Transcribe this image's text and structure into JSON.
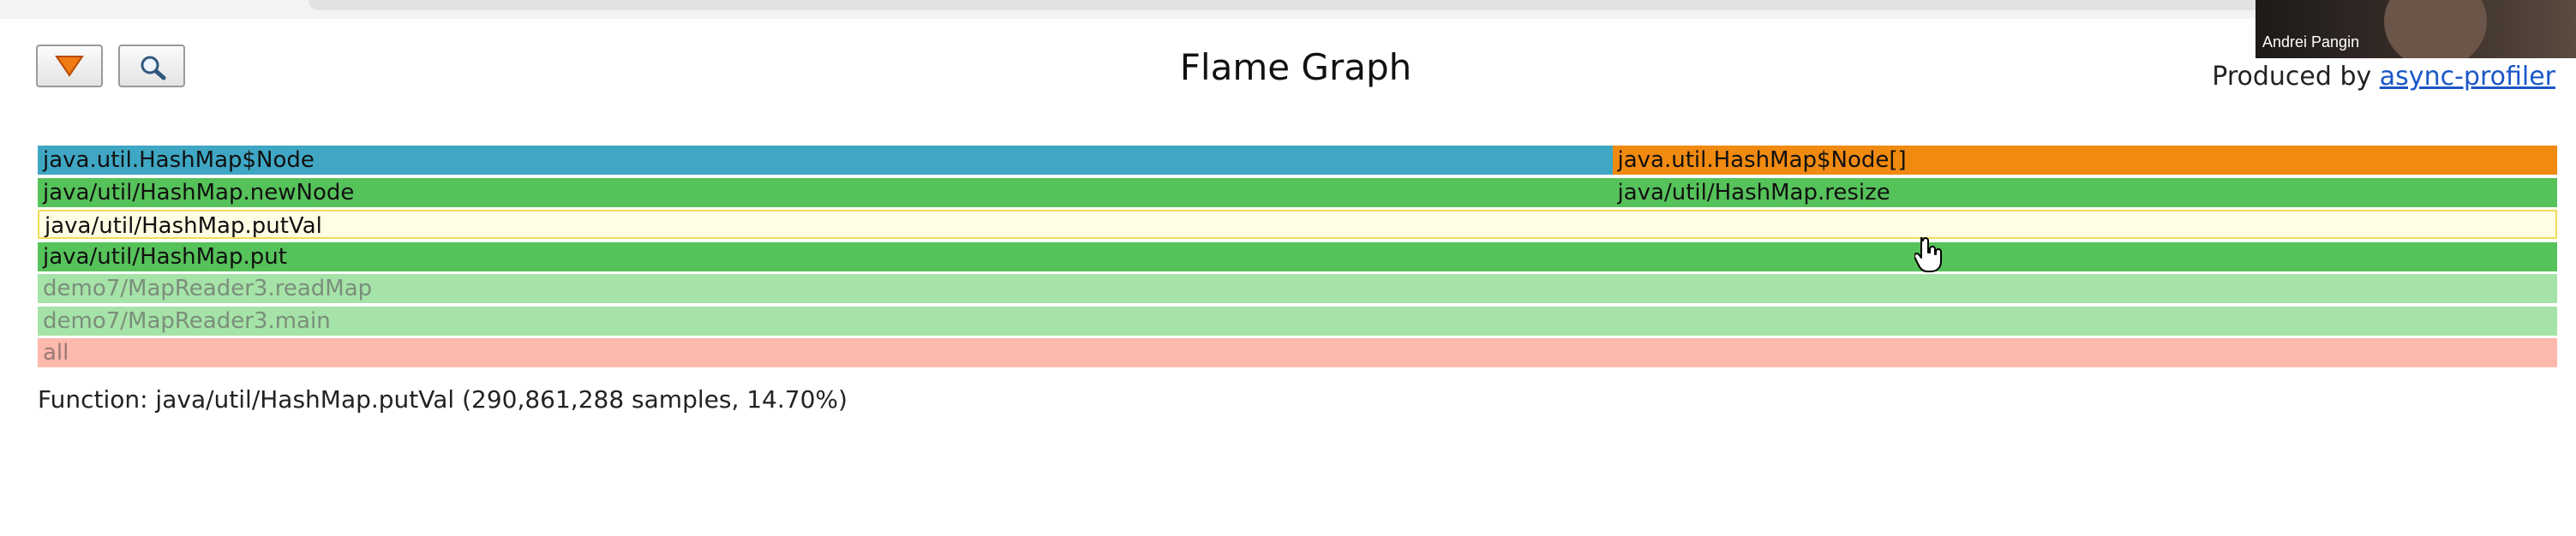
{
  "page": {
    "title": "Flame Graph",
    "credit_prefix": "Produced by ",
    "credit_link": "async-profiler",
    "status_text": "Function: java/util/HashMap.putVal (290,861,288 samples, 14.70%)"
  },
  "toolbar": {
    "reverse_icon": "triangle-down-icon",
    "search_icon": "magnifier-icon"
  },
  "flame": [
    {
      "label": "java.util.HashMap$Node",
      "row": 0,
      "start": 0.0,
      "width": 0.625,
      "color": "#3fa7c4",
      "text_color": "#111111"
    },
    {
      "label": "java.util.HashMap$Node[]",
      "row": 0,
      "start": 0.625,
      "width": 0.375,
      "color": "#f08a10",
      "text_color": "#111111"
    },
    {
      "label": "java/util/HashMap.newNode",
      "row": 1,
      "start": 0.0,
      "width": 0.625,
      "color": "#56c25a",
      "text_color": "#111111"
    },
    {
      "label": "java/util/HashMap.resize",
      "row": 1,
      "start": 0.625,
      "width": 0.375,
      "color": "#56c25a",
      "text_color": "#111111"
    },
    {
      "label": "java/util/HashMap.putVal",
      "row": 2,
      "start": 0.0,
      "width": 1.0,
      "color": "#fffde3",
      "text_color": "#111111",
      "highlight_border": "#f0dc5a"
    },
    {
      "label": "java/util/HashMap.put",
      "row": 3,
      "start": 0.0,
      "width": 1.0,
      "color": "#56c25a",
      "text_color": "#111111"
    },
    {
      "label": "demo7/MapReader3.readMap",
      "row": 4,
      "start": 0.0,
      "width": 1.0,
      "color": "#a6e3a8",
      "text_color": "#7a8f7b"
    },
    {
      "label": "demo7/MapReader3.main",
      "row": 5,
      "start": 0.0,
      "width": 1.0,
      "color": "#a6e3a8",
      "text_color": "#7a8f7b"
    },
    {
      "label": "all",
      "row": 6,
      "start": 0.0,
      "width": 1.0,
      "color": "#fdb9ac",
      "text_color": "#9a7a74"
    }
  ],
  "video": {
    "participant_name": "Andrei Pangin"
  }
}
